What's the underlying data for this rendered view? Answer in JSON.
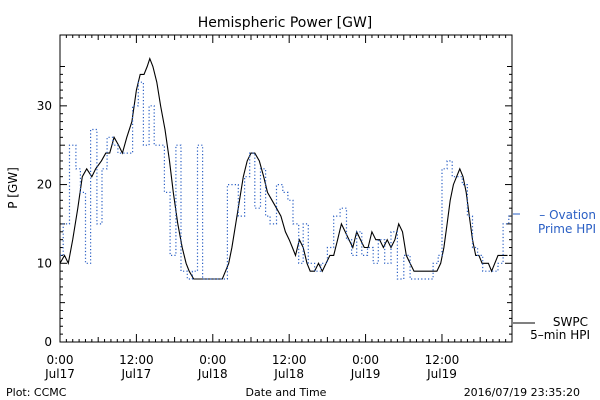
{
  "chart_data": {
    "type": "line",
    "title": "Hemispheric Power [GW]",
    "xlabel": "Date and Time",
    "ylabel": "P [GW]",
    "ylim": [
      0,
      39
    ],
    "xlim": [
      0,
      71
    ],
    "x_unit": "hours since 2016-07-17 00:00",
    "yticks": [
      0,
      10,
      20,
      30
    ],
    "xticks": [
      {
        "x": 0,
        "time": "0:00",
        "date": "Jul17"
      },
      {
        "x": 12,
        "time": "12:00",
        "date": "Jul17"
      },
      {
        "x": 24,
        "time": "0:00",
        "date": "Jul18"
      },
      {
        "x": 36,
        "time": "12:00",
        "date": "Jul18"
      },
      {
        "x": 48,
        "time": "0:00",
        "date": "Jul19"
      },
      {
        "x": 60,
        "time": "12:00",
        "date": "Jul19"
      }
    ],
    "series": [
      {
        "name": "SWPC 5-min HPI",
        "color": "#000000",
        "style": "solid",
        "points": [
          [
            0,
            10
          ],
          [
            0.7,
            11
          ],
          [
            1.3,
            10
          ],
          [
            2,
            13
          ],
          [
            2.8,
            17
          ],
          [
            3.5,
            21
          ],
          [
            4.2,
            22
          ],
          [
            5,
            21
          ],
          [
            5.6,
            22
          ],
          [
            6.5,
            23
          ],
          [
            7.2,
            24
          ],
          [
            7.8,
            24
          ],
          [
            8.5,
            26
          ],
          [
            9.2,
            25
          ],
          [
            9.8,
            24
          ],
          [
            10.5,
            26
          ],
          [
            11.3,
            28
          ],
          [
            12,
            32
          ],
          [
            12.6,
            34
          ],
          [
            13.2,
            34
          ],
          [
            13.7,
            35
          ],
          [
            14.1,
            36
          ],
          [
            14.6,
            35
          ],
          [
            15.2,
            33
          ],
          [
            15.8,
            30
          ],
          [
            16.5,
            27
          ],
          [
            17.2,
            23
          ],
          [
            17.8,
            19
          ],
          [
            18.5,
            15
          ],
          [
            19.2,
            12
          ],
          [
            19.8,
            10
          ],
          [
            20.3,
            9
          ],
          [
            21,
            8
          ],
          [
            21.8,
            8
          ],
          [
            22.5,
            8
          ],
          [
            23.5,
            8
          ],
          [
            24.5,
            8
          ],
          [
            25.5,
            8
          ],
          [
            26,
            9
          ],
          [
            26.5,
            10
          ],
          [
            27,
            12
          ],
          [
            27.6,
            15
          ],
          [
            28.2,
            18
          ],
          [
            28.8,
            21
          ],
          [
            29.4,
            23
          ],
          [
            30,
            24
          ],
          [
            30.6,
            24
          ],
          [
            31.3,
            23
          ],
          [
            32,
            21
          ],
          [
            32.6,
            19
          ],
          [
            33.3,
            18
          ],
          [
            34,
            17
          ],
          [
            34.7,
            16
          ],
          [
            35.4,
            14
          ],
          [
            36,
            13
          ],
          [
            36.5,
            12
          ],
          [
            37,
            11
          ],
          [
            37.6,
            13
          ],
          [
            38.2,
            12
          ],
          [
            38.8,
            10
          ],
          [
            39.3,
            9
          ],
          [
            40,
            9
          ],
          [
            40.6,
            10
          ],
          [
            41.2,
            9
          ],
          [
            41.8,
            10
          ],
          [
            42.4,
            11
          ],
          [
            43,
            11
          ],
          [
            43.6,
            13
          ],
          [
            44.2,
            15
          ],
          [
            44.8,
            14
          ],
          [
            45.4,
            13
          ],
          [
            46,
            12
          ],
          [
            46.6,
            14
          ],
          [
            47.2,
            13
          ],
          [
            47.8,
            12
          ],
          [
            48.4,
            12
          ],
          [
            49,
            14
          ],
          [
            49.6,
            13
          ],
          [
            50.2,
            13
          ],
          [
            50.8,
            12
          ],
          [
            51.4,
            13
          ],
          [
            52,
            12
          ],
          [
            52.6,
            13
          ],
          [
            53.2,
            15
          ],
          [
            53.8,
            14
          ],
          [
            54.4,
            11
          ],
          [
            55,
            10
          ],
          [
            55.6,
            9
          ],
          [
            56.5,
            9
          ],
          [
            57.5,
            9
          ],
          [
            58.5,
            9
          ],
          [
            59.2,
            9
          ],
          [
            59.8,
            10
          ],
          [
            60.3,
            12
          ],
          [
            60.8,
            15
          ],
          [
            61.3,
            18
          ],
          [
            61.8,
            20
          ],
          [
            62.3,
            21
          ],
          [
            62.8,
            22
          ],
          [
            63.3,
            21
          ],
          [
            63.8,
            19
          ],
          [
            64.3,
            16
          ],
          [
            64.8,
            13
          ],
          [
            65.3,
            11
          ],
          [
            65.8,
            11
          ],
          [
            66.3,
            10
          ],
          [
            66.8,
            10
          ],
          [
            67.3,
            10
          ],
          [
            67.8,
            9
          ],
          [
            68.3,
            10
          ],
          [
            68.8,
            11
          ],
          [
            69.3,
            11
          ],
          [
            69.8,
            11
          ],
          [
            70.3,
            11
          ]
        ]
      },
      {
        "name": "Ovation Prime HPI",
        "color": "#2a5fc4",
        "style": "dotted-step",
        "points": [
          [
            0,
            11
          ],
          [
            0.5,
            15
          ],
          [
            1.5,
            25
          ],
          [
            2.5,
            22
          ],
          [
            3.2,
            19
          ],
          [
            4,
            10
          ],
          [
            4.8,
            27
          ],
          [
            5.8,
            15
          ],
          [
            6.6,
            22
          ],
          [
            7.4,
            26
          ],
          [
            8.3,
            25
          ],
          [
            9.1,
            24
          ],
          [
            10,
            24
          ],
          [
            11.4,
            30
          ],
          [
            12.3,
            33
          ],
          [
            13.1,
            25
          ],
          [
            14,
            30
          ],
          [
            14.8,
            25
          ],
          [
            15.6,
            25
          ],
          [
            16.4,
            19
          ],
          [
            17.3,
            11
          ],
          [
            18.2,
            25
          ],
          [
            19,
            9
          ],
          [
            20,
            8
          ],
          [
            20.8,
            9
          ],
          [
            21.6,
            25
          ],
          [
            22.4,
            8
          ],
          [
            23.5,
            8
          ],
          [
            24.5,
            8
          ],
          [
            25.5,
            8
          ],
          [
            26.3,
            20
          ],
          [
            27.2,
            20
          ],
          [
            28,
            16
          ],
          [
            29,
            21
          ],
          [
            29.8,
            24
          ],
          [
            30.6,
            17
          ],
          [
            31.5,
            22
          ],
          [
            32.3,
            16
          ],
          [
            33,
            15
          ],
          [
            34,
            20
          ],
          [
            35,
            19
          ],
          [
            35.8,
            18
          ],
          [
            36.6,
            15
          ],
          [
            37.5,
            10
          ],
          [
            38.2,
            15
          ],
          [
            39,
            10
          ],
          [
            40,
            9
          ],
          [
            41,
            10
          ],
          [
            42,
            12
          ],
          [
            43,
            16
          ],
          [
            44,
            17
          ],
          [
            45,
            13
          ],
          [
            45.8,
            11
          ],
          [
            46.6,
            14
          ],
          [
            47.4,
            11
          ],
          [
            48.3,
            12
          ],
          [
            49.2,
            10
          ],
          [
            50,
            13
          ],
          [
            51,
            10
          ],
          [
            52,
            14
          ],
          [
            53,
            8
          ],
          [
            54,
            11
          ],
          [
            55,
            8
          ],
          [
            56,
            8
          ],
          [
            57,
            8
          ],
          [
            58,
            8
          ],
          [
            58.6,
            10
          ],
          [
            59.4,
            11
          ],
          [
            60,
            22
          ],
          [
            60.8,
            23
          ],
          [
            61.6,
            21
          ],
          [
            62.4,
            21
          ],
          [
            63.2,
            20
          ],
          [
            64,
            16
          ],
          [
            64.8,
            12
          ],
          [
            65.6,
            11
          ],
          [
            66.4,
            9
          ],
          [
            67.2,
            9
          ],
          [
            68,
            9
          ],
          [
            68.8,
            10
          ],
          [
            69.6,
            15
          ],
          [
            70.5,
            16
          ]
        ]
      }
    ],
    "legend": {
      "placement": "right",
      "items": [
        {
          "series": "Ovation Prime HPI",
          "marker": "– Ovation",
          "line2": "Prime HPI",
          "color": "#2a5fc4"
        },
        {
          "series": "SWPC 5-min HPI",
          "marker": "SWPC",
          "line2": "5–min HPI",
          "color": "#000000"
        }
      ]
    },
    "grid": false
  },
  "footer": {
    "left": "Plot: CCMC",
    "center": "Date and Time",
    "right": "2016/07/19 23:35:20"
  }
}
